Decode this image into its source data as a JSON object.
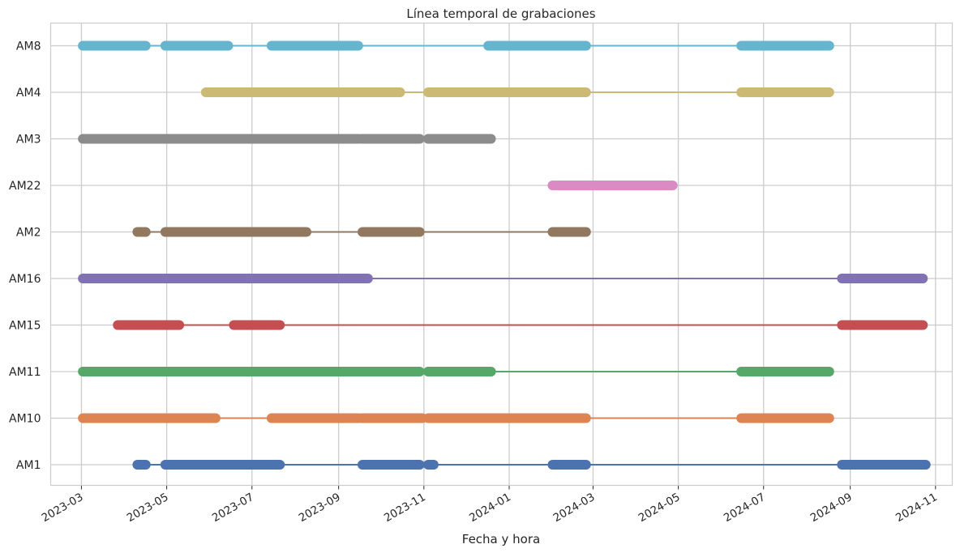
{
  "chart_data": {
    "type": "timeline",
    "title": "Línea temporal de grabaciones",
    "xlabel": "Fecha y hora",
    "ylabel": "",
    "x_type": "date",
    "xlim": [
      "2023-02-07",
      "2024-11-13"
    ],
    "grid": true,
    "legend": "none",
    "x_ticks": [
      "2023-03",
      "2023-05",
      "2023-07",
      "2023-09",
      "2023-11",
      "2024-01",
      "2024-03",
      "2024-05",
      "2024-07",
      "2024-09",
      "2024-11"
    ],
    "categories": [
      "AM1",
      "AM10",
      "AM11",
      "AM15",
      "AM16",
      "AM2",
      "AM22",
      "AM3",
      "AM4",
      "AM8"
    ],
    "series": [
      {
        "name": "AM1",
        "color": "#4c72b0",
        "segments": [
          [
            "2023-04-10",
            "2023-04-16"
          ],
          [
            "2023-04-30",
            "2023-07-21"
          ],
          [
            "2023-09-18",
            "2023-10-29"
          ],
          [
            "2023-11-04",
            "2023-11-08"
          ],
          [
            "2024-02-01",
            "2024-02-25"
          ],
          [
            "2024-08-26",
            "2024-10-25"
          ]
        ]
      },
      {
        "name": "AM10",
        "color": "#dd8452",
        "segments": [
          [
            "2023-03-02",
            "2023-06-05"
          ],
          [
            "2023-07-15",
            "2023-09-15"
          ],
          [
            "2023-09-17",
            "2023-10-31"
          ],
          [
            "2023-11-04",
            "2024-02-25"
          ],
          [
            "2024-06-15",
            "2024-08-17"
          ]
        ]
      },
      {
        "name": "AM11",
        "color": "#55a868",
        "segments": [
          [
            "2023-03-02",
            "2023-10-29"
          ],
          [
            "2023-11-04",
            "2023-12-19"
          ],
          [
            "2024-06-15",
            "2024-08-17"
          ]
        ]
      },
      {
        "name": "AM15",
        "color": "#c44e52",
        "segments": [
          [
            "2023-03-27",
            "2023-05-10"
          ],
          [
            "2023-06-18",
            "2023-07-21"
          ],
          [
            "2024-08-26",
            "2024-10-23"
          ]
        ]
      },
      {
        "name": "AM16",
        "color": "#8172b3",
        "segments": [
          [
            "2023-03-02",
            "2023-09-22"
          ],
          [
            "2024-08-26",
            "2024-10-23"
          ]
        ]
      },
      {
        "name": "AM2",
        "color": "#937860",
        "segments": [
          [
            "2023-04-10",
            "2023-04-16"
          ],
          [
            "2023-04-30",
            "2023-08-09"
          ],
          [
            "2023-09-18",
            "2023-10-29"
          ],
          [
            "2024-02-01",
            "2024-02-25"
          ]
        ]
      },
      {
        "name": "AM22",
        "color": "#da8bc3",
        "segments": [
          [
            "2024-02-01",
            "2024-04-27"
          ]
        ]
      },
      {
        "name": "AM3",
        "color": "#8c8c8c",
        "segments": [
          [
            "2023-03-02",
            "2023-09-15"
          ],
          [
            "2023-09-17",
            "2023-10-29"
          ],
          [
            "2023-11-04",
            "2023-12-19"
          ]
        ]
      },
      {
        "name": "AM4",
        "color": "#ccb974",
        "segments": [
          [
            "2023-05-29",
            "2023-10-15"
          ],
          [
            "2023-11-04",
            "2024-02-25"
          ],
          [
            "2024-06-15",
            "2024-08-17"
          ]
        ]
      },
      {
        "name": "AM8",
        "color": "#64b5cd",
        "segments": [
          [
            "2023-03-02",
            "2023-04-16"
          ],
          [
            "2023-04-30",
            "2023-06-14"
          ],
          [
            "2023-07-15",
            "2023-09-15"
          ],
          [
            "2023-12-17",
            "2024-02-25"
          ],
          [
            "2024-06-15",
            "2024-08-17"
          ]
        ]
      }
    ]
  }
}
